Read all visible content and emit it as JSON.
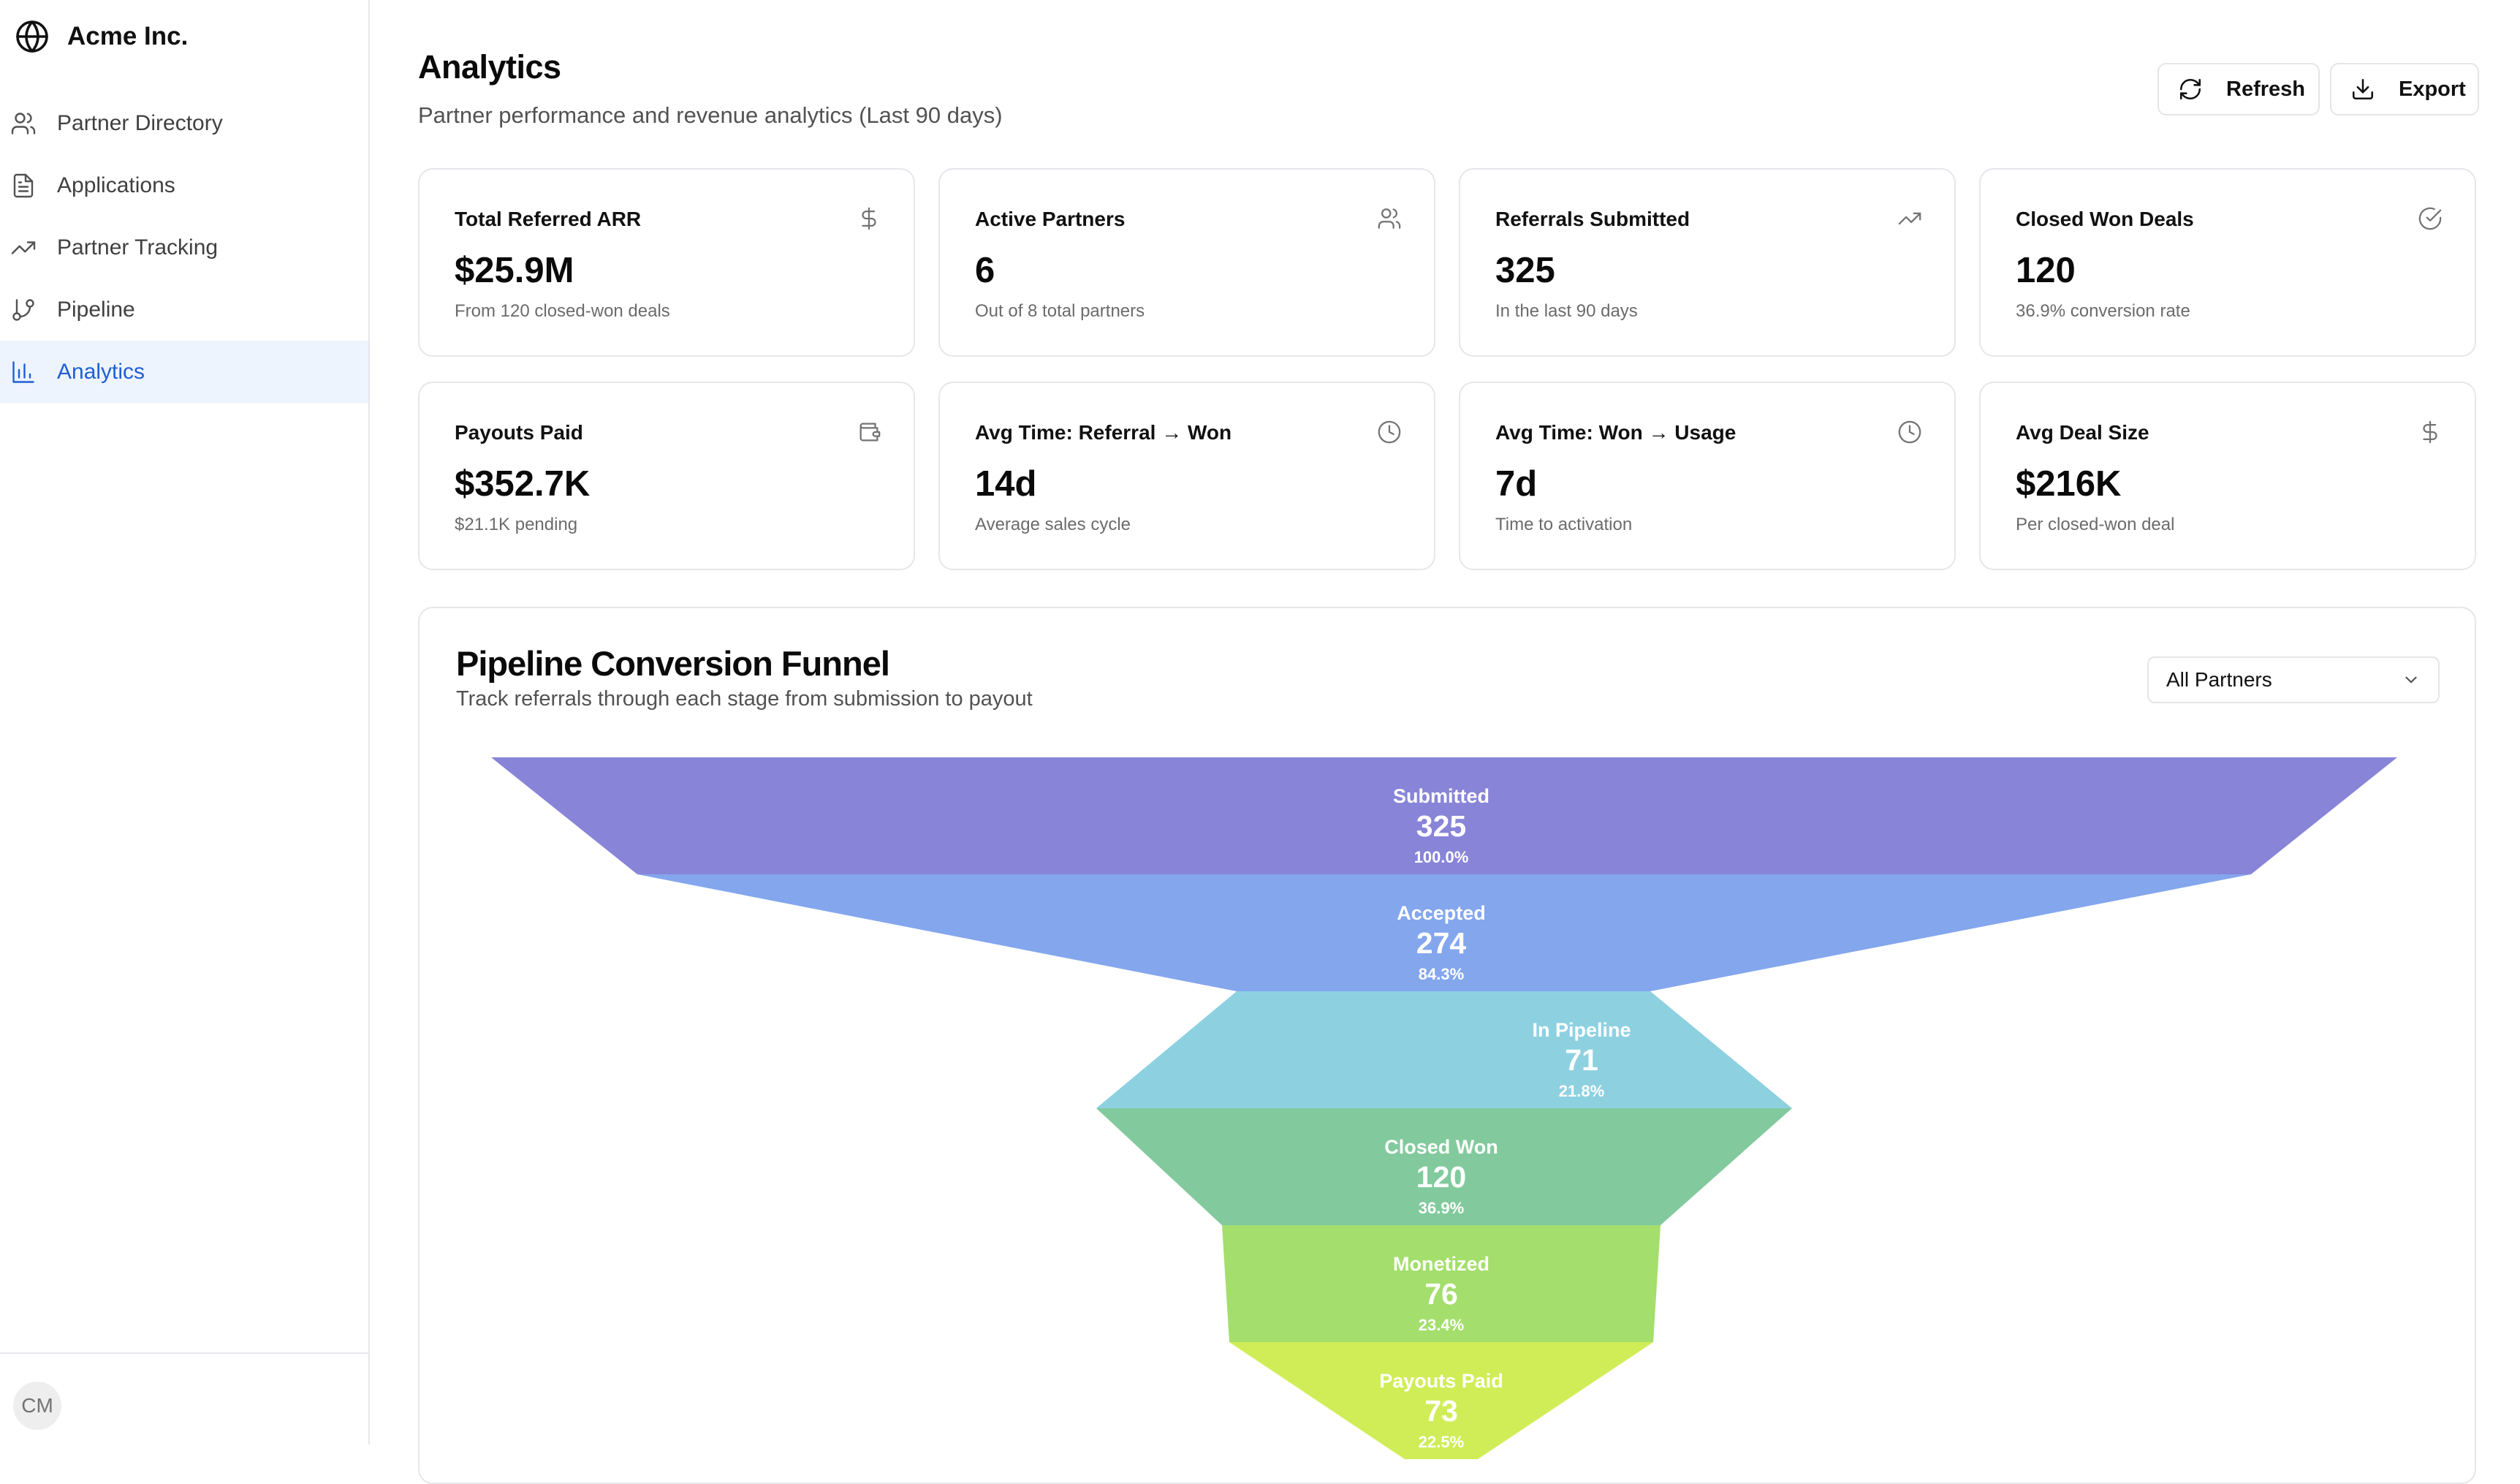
{
  "app": {
    "brand": "Acme Inc.",
    "brand_icon": "globe-icon"
  },
  "sidebar": {
    "items": [
      {
        "label": "Partner Directory",
        "icon": "users-icon",
        "active": false
      },
      {
        "label": "Applications",
        "icon": "file-text-icon",
        "active": false
      },
      {
        "label": "Partner Tracking",
        "icon": "trending-up-icon",
        "active": false
      },
      {
        "label": "Pipeline",
        "icon": "git-branch-icon",
        "active": false
      },
      {
        "label": "Analytics",
        "icon": "bar-chart-icon",
        "active": true
      }
    ],
    "user_initials": "CM"
  },
  "header": {
    "title": "Analytics",
    "subtitle": "Partner performance and revenue analytics (Last 90 days)",
    "refresh_label": "Refresh",
    "export_label": "Export"
  },
  "stats": [
    {
      "title": "Total Referred ARR",
      "value": "$25.9M",
      "desc": "From 120 closed-won deals",
      "icon": "dollar-icon"
    },
    {
      "title": "Active Partners",
      "value": "6",
      "desc": "Out of 8 total partners",
      "icon": "users-icon"
    },
    {
      "title": "Referrals Submitted",
      "value": "325",
      "desc": "In the last 90 days",
      "icon": "trending-up-icon"
    },
    {
      "title": "Closed Won Deals",
      "value": "120",
      "desc": "36.9% conversion rate",
      "icon": "check-circle-icon"
    },
    {
      "title": "Payouts Paid",
      "value": "$352.7K",
      "desc": "$21.1K pending",
      "icon": "wallet-icon"
    },
    {
      "title": "Avg Time: Referral → Won",
      "value": "14d",
      "desc": "Average sales cycle",
      "icon": "clock-icon"
    },
    {
      "title": "Avg Time: Won → Usage",
      "value": "7d",
      "desc": "Time to activation",
      "icon": "clock-icon"
    },
    {
      "title": "Avg Deal Size",
      "value": "$216K",
      "desc": "Per closed-won deal",
      "icon": "dollar-icon"
    }
  ],
  "funnel": {
    "title": "Pipeline Conversion Funnel",
    "subtitle": "Track referrals through each stage from submission to payout",
    "filter_value": "All Partners",
    "colors": [
      "#8884d8",
      "#83a6ed",
      "#8dd1e1",
      "#82ca9d",
      "#a4de6c",
      "#d0ed57"
    ],
    "stages": [
      {
        "name": "Submitted",
        "value": "325",
        "percent": "100.0%"
      },
      {
        "name": "Accepted",
        "value": "274",
        "percent": "84.3%"
      },
      {
        "name": "In Pipeline",
        "value": "71",
        "percent": "21.8%"
      },
      {
        "name": "Closed Won",
        "value": "120",
        "percent": "36.9%"
      },
      {
        "name": "Monetized",
        "value": "76",
        "percent": "23.4%"
      },
      {
        "name": "Payouts Paid",
        "value": "73",
        "percent": "22.5%"
      }
    ]
  }
}
